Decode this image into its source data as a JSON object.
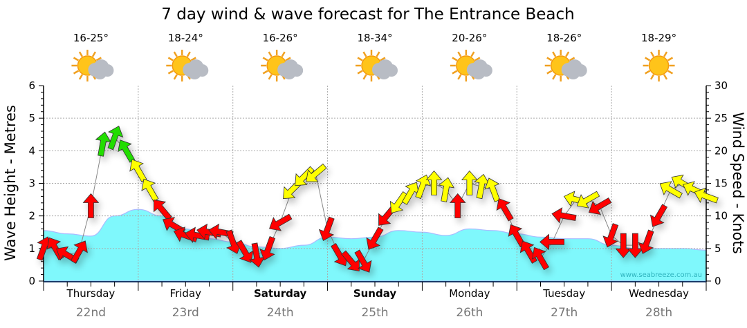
{
  "chart_data": {
    "type": "area+wind-arrows",
    "title": "7 day wind & wave forecast for The Entrance Beach",
    "ylabel_left": "Wave Height - Metres",
    "ylabel_right": "Wind Speed - Knots",
    "ylim_left": [
      0,
      6
    ],
    "ylim_right": [
      0,
      30
    ],
    "yticks_left": [
      "0",
      "1",
      "2",
      "3",
      "4",
      "5",
      "6"
    ],
    "yticks_right": [
      "0",
      "5",
      "10",
      "15",
      "20",
      "25",
      "30"
    ],
    "grid": true,
    "watermark": "www.seabreeze.com.au",
    "days": [
      {
        "day": "Thursday",
        "date": "22nd",
        "temp": "16-25°",
        "icon": "sun-cloud-icon",
        "bold": false
      },
      {
        "day": "Friday",
        "date": "23rd",
        "temp": "18-24°",
        "icon": "sun-cloud-icon",
        "bold": false
      },
      {
        "day": "Saturday",
        "date": "24th",
        "temp": "16-26°",
        "icon": "sun-cloud-icon",
        "bold": true
      },
      {
        "day": "Sunday",
        "date": "25th",
        "temp": "18-34°",
        "icon": "sun-cloud-icon",
        "bold": true
      },
      {
        "day": "Monday",
        "date": "26th",
        "temp": "20-26°",
        "icon": "sun-cloud-icon",
        "bold": false
      },
      {
        "day": "Tuesday",
        "date": "27th",
        "temp": "18-26°",
        "icon": "sun-cloud-icon",
        "bold": false
      },
      {
        "day": "Wednesday",
        "date": "28th",
        "temp": "18-29°",
        "icon": "sun-icon",
        "bold": false
      }
    ],
    "wave_interval_hours": 6,
    "wave_height_m": [
      1.55,
      1.45,
      1.38,
      2.0,
      2.2,
      2.0,
      1.6,
      1.3,
      1.2,
      1.05,
      1.0,
      1.1,
      1.35,
      1.3,
      1.35,
      1.55,
      1.5,
      1.4,
      1.6,
      1.55,
      1.45,
      1.35,
      1.3,
      1.3,
      1.1,
      1.0,
      1.0,
      1.0,
      0.95
    ],
    "wind_interval_hours": 3,
    "wind_knots": [
      5,
      5,
      4,
      4.5,
      11.5,
      21,
      22,
      20,
      17,
      14,
      11,
      8.5,
      7,
      7,
      7.5,
      7.5,
      6,
      4.5,
      4,
      5,
      9,
      14,
      16,
      16.5,
      8,
      4,
      3,
      3,
      6.5,
      10,
      12,
      13.5,
      14.5,
      15,
      14,
      11.5,
      15,
      14.5,
      14,
      11,
      7,
      4.5,
      3.5,
      6,
      10,
      12.5,
      12.5,
      11.5,
      7,
      5.5,
      5.5,
      6,
      10,
      14,
      15,
      14,
      13
    ],
    "wind_dir_deg": [
      20,
      330,
      300,
      30,
      0,
      10,
      20,
      330,
      330,
      330,
      320,
      300,
      290,
      280,
      280,
      280,
      160,
      150,
      170,
      200,
      240,
      225,
      225,
      230,
      200,
      150,
      140,
      150,
      210,
      220,
      215,
      30,
      20,
      0,
      10,
      0,
      0,
      10,
      340,
      330,
      330,
      330,
      330,
      270,
      280,
      285,
      240,
      240,
      200,
      180,
      180,
      200,
      210,
      300,
      300,
      295,
      290
    ],
    "wind_color_thresholds_knots": [
      12,
      20
    ],
    "colors": {
      "wave": "#7ff8fc",
      "wave_edge": "#aabbff",
      "low": "#ff0000",
      "mid": "#ffff00",
      "high": "#22dd00",
      "grid": "#aaaaaa"
    }
  }
}
